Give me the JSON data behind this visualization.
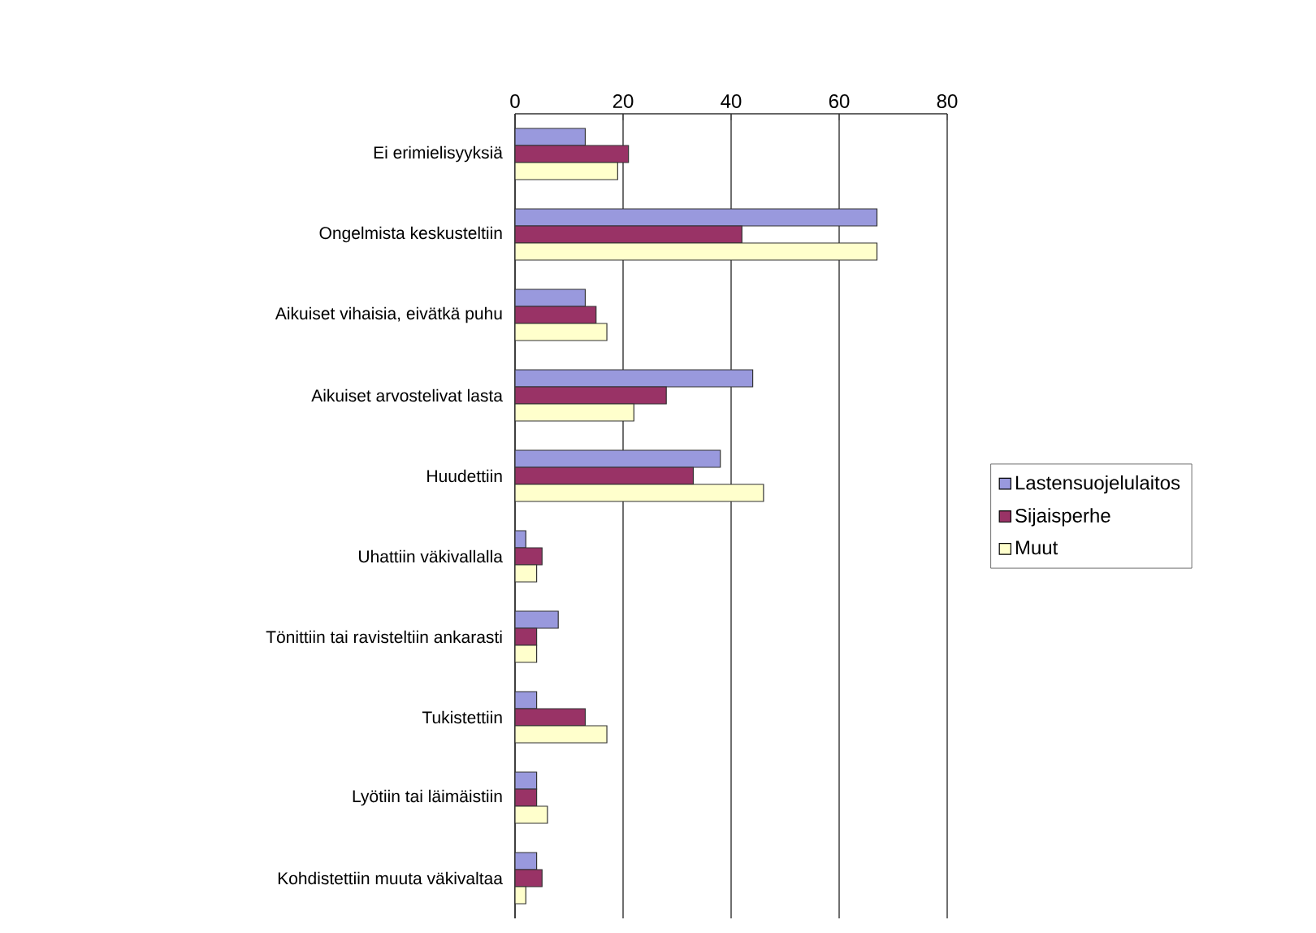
{
  "chart_data": {
    "type": "bar",
    "orientation": "horizontal",
    "categories": [
      "Ei erimielisyyksiä",
      "Ongelmista keskusteltiin",
      "Aikuiset vihaisia, eivätkä puhu",
      "Aikuiset arvostelivat lasta",
      "Huudettiin",
      "Uhattiin väkivallalla",
      "Tönittiin tai ravisteltiin ankarasti",
      "Tukistettiin",
      "Lyötiin tai läimäistiin",
      "Kohdistettiin muuta väkivaltaa"
    ],
    "series": [
      {
        "name": "Lastensuojelulaitos",
        "color": "#9999dd",
        "values": [
          13,
          67,
          13,
          44,
          38,
          2,
          8,
          4,
          4,
          4
        ]
      },
      {
        "name": "Sijaisperhe",
        "color": "#993366",
        "values": [
          21,
          42,
          15,
          28,
          33,
          5,
          4,
          13,
          4,
          5
        ]
      },
      {
        "name": "Muut",
        "color": "#ffffcc",
        "values": [
          19,
          67,
          17,
          22,
          46,
          4,
          4,
          17,
          6,
          2
        ]
      }
    ],
    "xlim": [
      0,
      80
    ],
    "xticks": [
      0,
      20,
      40,
      60,
      80
    ],
    "grid": "x",
    "legend": "right"
  }
}
